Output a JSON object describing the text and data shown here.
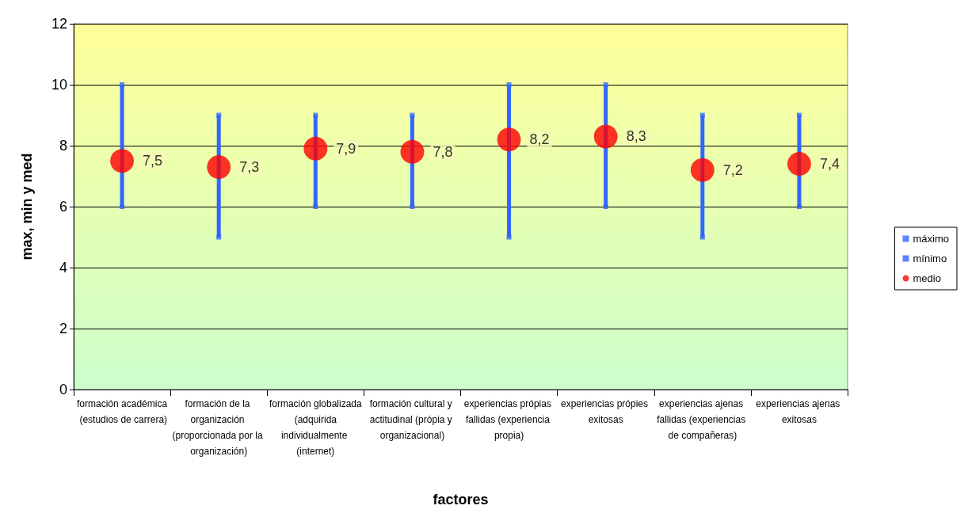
{
  "chart_data": {
    "type": "scatter",
    "xlabel": "factores",
    "ylabel": "max, min y med",
    "categories": [
      "formación académica (estudios de carrera)",
      "formación de la organización (proporcionada por la organización)",
      "formación globalizada (adquirida individualmente (internet)",
      "formación cultural y actitudinal (própia y organizacional)",
      "experiencias própias fallidas (experiencia propia)",
      "experiencias própies exitosas",
      "experiencias ajenas fallidas (experiencias de compañeras)",
      "experiencias ajenas exitosas"
    ],
    "series": [
      {
        "name": "máximo",
        "color": "#3366ff",
        "marker": "square",
        "values": [
          10,
          9,
          9,
          9,
          10,
          10,
          9,
          9
        ]
      },
      {
        "name": "mínimo",
        "color": "#3366ff",
        "marker": "square",
        "values": [
          6,
          5,
          6,
          6,
          5,
          6,
          5,
          6
        ]
      },
      {
        "name": "medio",
        "color": "#ff0000",
        "marker": "circle",
        "values": [
          7.5,
          7.3,
          7.9,
          7.8,
          8.2,
          8.3,
          7.2,
          7.4
        ],
        "value_labels": [
          "7,5",
          "7,3",
          "7,9",
          "7,8",
          "8,2",
          "8,3",
          "7,2",
          "7,4"
        ]
      }
    ],
    "ylim": [
      0,
      12
    ],
    "yticks": [
      0,
      2,
      4,
      6,
      8,
      10,
      12
    ],
    "grid": "y",
    "legend": "right"
  }
}
